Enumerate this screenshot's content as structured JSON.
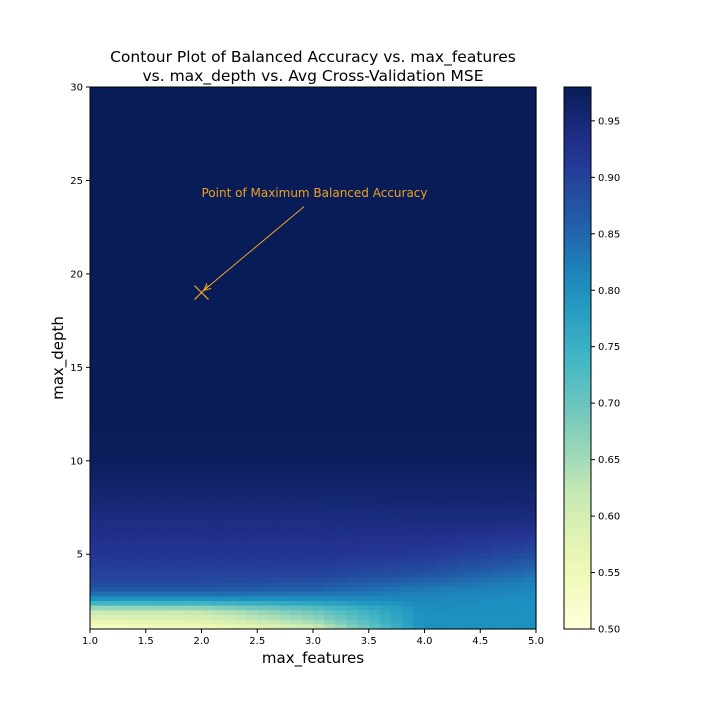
{
  "chart_data": {
    "type": "heatmap",
    "title_lines": [
      "Contour Plot of Balanced Accuracy vs. max_features",
      "vs. max_depth vs. Avg Cross-Validation MSE"
    ],
    "xlabel": "max_features",
    "ylabel": "max_depth",
    "xlim": [
      1.0,
      5.0
    ],
    "ylim": [
      1,
      30
    ],
    "x_ticks": [
      "1.0",
      "1.5",
      "2.0",
      "2.5",
      "3.0",
      "3.5",
      "4.0",
      "4.5",
      "5.0"
    ],
    "y_ticks": [
      "5",
      "10",
      "15",
      "20",
      "25",
      "30"
    ],
    "colorbar": {
      "range": [
        0.5,
        0.98
      ],
      "ticks": [
        "0.50",
        "0.55",
        "0.60",
        "0.65",
        "0.70",
        "0.75",
        "0.80",
        "0.85",
        "0.90",
        "0.95"
      ],
      "colormap": "YlGnBu"
    },
    "field_profiles": {
      "depth": [
        1,
        1.5,
        2,
        2.5,
        3,
        3.5,
        4,
        5,
        6,
        7,
        8,
        9,
        10,
        12,
        15,
        20,
        25,
        30
      ],
      "max_features": [
        1.0,
        2.0,
        3.0,
        4.0,
        5.0
      ],
      "accuracy": [
        [
          0.52,
          0.58,
          0.62,
          0.78,
          0.86,
          0.89,
          0.9,
          0.92,
          0.93,
          0.94,
          0.955,
          0.965,
          0.975,
          0.98,
          0.98,
          0.98,
          0.98,
          0.98
        ],
        [
          0.54,
          0.59,
          0.63,
          0.78,
          0.86,
          0.89,
          0.9,
          0.92,
          0.93,
          0.94,
          0.955,
          0.965,
          0.975,
          0.98,
          0.98,
          0.98,
          0.98,
          0.98
        ],
        [
          0.6,
          0.66,
          0.7,
          0.79,
          0.85,
          0.88,
          0.9,
          0.92,
          0.93,
          0.94,
          0.955,
          0.965,
          0.975,
          0.98,
          0.98,
          0.98,
          0.98,
          0.98
        ],
        [
          0.8,
          0.8,
          0.8,
          0.81,
          0.82,
          0.85,
          0.88,
          0.915,
          0.93,
          0.945,
          0.955,
          0.965,
          0.975,
          0.98,
          0.98,
          0.98,
          0.98,
          0.98
        ],
        [
          0.8,
          0.8,
          0.8,
          0.8,
          0.81,
          0.82,
          0.84,
          0.885,
          0.92,
          0.945,
          0.955,
          0.965,
          0.975,
          0.98,
          0.98,
          0.98,
          0.98,
          0.98
        ]
      ]
    },
    "annotation": {
      "text": "Point of Maximum Balanced Accuracy",
      "marker": "x",
      "point": {
        "max_features": 2.0,
        "max_depth": 19
      },
      "text_position": {
        "max_features": 2.0,
        "max_depth": 24
      },
      "arrow_tail": {
        "max_features": 2.92,
        "max_depth": 23.6
      },
      "color": "#f0a020"
    },
    "grid": false
  }
}
